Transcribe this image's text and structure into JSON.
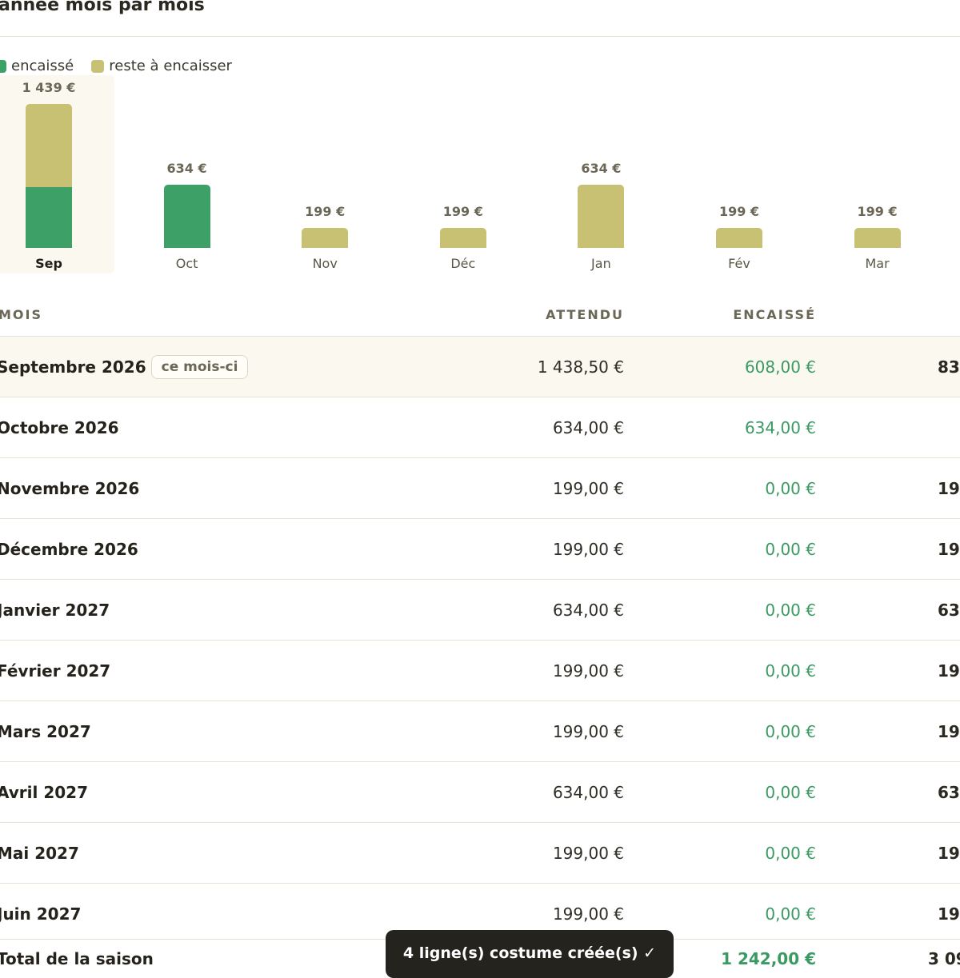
{
  "section": {
    "title": "année mois par mois"
  },
  "legend": {
    "encaisse": {
      "label": "encaissé",
      "color": "#3da067"
    },
    "reste": {
      "label": "reste à encaisser",
      "color": "#c8c173"
    }
  },
  "chart_data": {
    "type": "bar",
    "stacked": true,
    "categories": [
      "Sep",
      "Oct",
      "Nov",
      "Déc",
      "Jan",
      "Fév",
      "Mar"
    ],
    "series": [
      {
        "name": "encaissé",
        "values": [
          608,
          634,
          0,
          0,
          0,
          0,
          0
        ],
        "color": "#3da067"
      },
      {
        "name": "reste à encaisser",
        "values": [
          831,
          0,
          199,
          199,
          634,
          199,
          199
        ],
        "color": "#c8c173"
      }
    ],
    "totals_labels": [
      "1 439 €",
      "634 €",
      "199 €",
      "199 €",
      "634 €",
      "199 €",
      "199 €"
    ],
    "current": "Sep",
    "ylim": [
      0,
      1439
    ]
  },
  "table": {
    "headers": {
      "mois": "MOIS",
      "attendu": "ATTENDU",
      "encaisse": "ENCAISSÉ"
    },
    "current_badge": "ce mois-ci",
    "rows": [
      {
        "mois": "Septembre 2026",
        "attendu": "1 438,50 €",
        "encaisse": "608,00 €",
        "reste": "83",
        "current": true
      },
      {
        "mois": "Octobre 2026",
        "attendu": "634,00 €",
        "encaisse": "634,00 €",
        "reste": ""
      },
      {
        "mois": "Novembre 2026",
        "attendu": "199,00 €",
        "encaisse": "0,00 €",
        "reste": "19"
      },
      {
        "mois": "Décembre 2026",
        "attendu": "199,00 €",
        "encaisse": "0,00 €",
        "reste": "19"
      },
      {
        "mois": "Janvier 2027",
        "attendu": "634,00 €",
        "encaisse": "0,00 €",
        "reste": "63"
      },
      {
        "mois": "Février 2027",
        "attendu": "199,00 €",
        "encaisse": "0,00 €",
        "reste": "19"
      },
      {
        "mois": "Mars 2027",
        "attendu": "199,00 €",
        "encaisse": "0,00 €",
        "reste": "19"
      },
      {
        "mois": "Avril 2027",
        "attendu": "634,00 €",
        "encaisse": "0,00 €",
        "reste": "63"
      },
      {
        "mois": "Mai 2027",
        "attendu": "199,00 €",
        "encaisse": "0,00 €",
        "reste": "19"
      },
      {
        "mois": "Juin 2027",
        "attendu": "199,00 €",
        "encaisse": "0,00 €",
        "reste": "19"
      }
    ],
    "total": {
      "label": "Total de la saison",
      "encaisse": "1 242,00 €",
      "reste": "3 09"
    }
  },
  "toast": {
    "message": "4 ligne(s) costume créée(s) ✓"
  }
}
